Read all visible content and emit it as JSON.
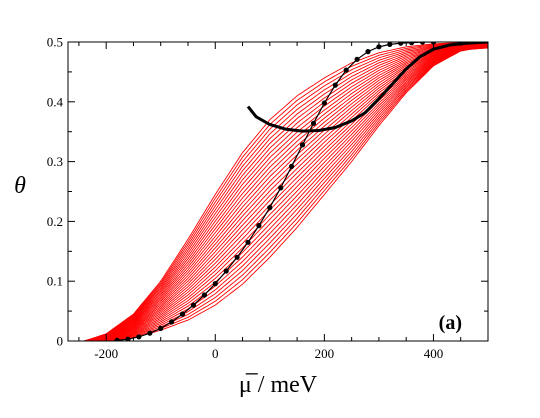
{
  "chart_data": {
    "type": "line",
    "title": "",
    "xlabel": "μ̅  /  meV",
    "ylabel": "θ",
    "panel_label": "(a)",
    "xlim": [
      -270,
      500
    ],
    "ylim": [
      0,
      0.5
    ],
    "xticks": [
      -200,
      0,
      200,
      400
    ],
    "xtick_labels": [
      "-200",
      "0",
      "200",
      "400"
    ],
    "yticks": [
      0,
      0.1,
      0.2,
      0.3,
      0.4,
      0.5
    ],
    "ytick_labels": [
      "0",
      "0.1",
      "0.2",
      "0.3",
      "0.4",
      "0.5"
    ],
    "grid": false,
    "colors": {
      "family": "#ff0000",
      "highlight": "#000000",
      "markers": "#000000"
    },
    "isotherm_family": {
      "count": 30,
      "first": {
        "x": [
          -240,
          -200,
          -150,
          -100,
          -50,
          0,
          50,
          100,
          150,
          200,
          250,
          300,
          350,
          400,
          450,
          500
        ],
        "y": [
          0.0,
          0.012,
          0.045,
          0.1,
          0.17,
          0.245,
          0.315,
          0.37,
          0.41,
          0.44,
          0.465,
          0.482,
          0.492,
          0.497,
          0.499,
          0.5
        ]
      },
      "last": {
        "x": [
          -200,
          -150,
          -100,
          -50,
          0,
          50,
          100,
          150,
          200,
          250,
          300,
          350,
          400,
          450,
          470,
          500
        ],
        "y": [
          0.0,
          0.005,
          0.018,
          0.035,
          0.06,
          0.095,
          0.14,
          0.19,
          0.245,
          0.3,
          0.36,
          0.415,
          0.46,
          0.485,
          0.488,
          0.49
        ]
      }
    },
    "series": [
      {
        "x": [
          60,
          75,
          100,
          130,
          160,
          190,
          220,
          250,
          275,
          300,
          325,
          350,
          375,
          400,
          430,
          460,
          500
        ],
        "y": [
          0.392,
          0.375,
          0.362,
          0.354,
          0.351,
          0.352,
          0.357,
          0.368,
          0.382,
          0.405,
          0.43,
          0.455,
          0.475,
          0.488,
          0.495,
          0.498,
          0.5
        ]
      },
      {
        "style": "dotted-markers",
        "x": [
          -180,
          -160,
          -140,
          -120,
          -100,
          -80,
          -60,
          -40,
          -20,
          0,
          20,
          40,
          60,
          80,
          100,
          120,
          140,
          160,
          180,
          200,
          220,
          240,
          260,
          280,
          300,
          320,
          340,
          360,
          380,
          400
        ],
        "y": [
          0.001,
          0.003,
          0.007,
          0.013,
          0.021,
          0.032,
          0.045,
          0.06,
          0.077,
          0.096,
          0.117,
          0.14,
          0.165,
          0.193,
          0.223,
          0.256,
          0.292,
          0.328,
          0.364,
          0.398,
          0.428,
          0.453,
          0.471,
          0.484,
          0.492,
          0.496,
          0.498,
          0.499,
          0.5,
          0.5
        ]
      }
    ]
  }
}
